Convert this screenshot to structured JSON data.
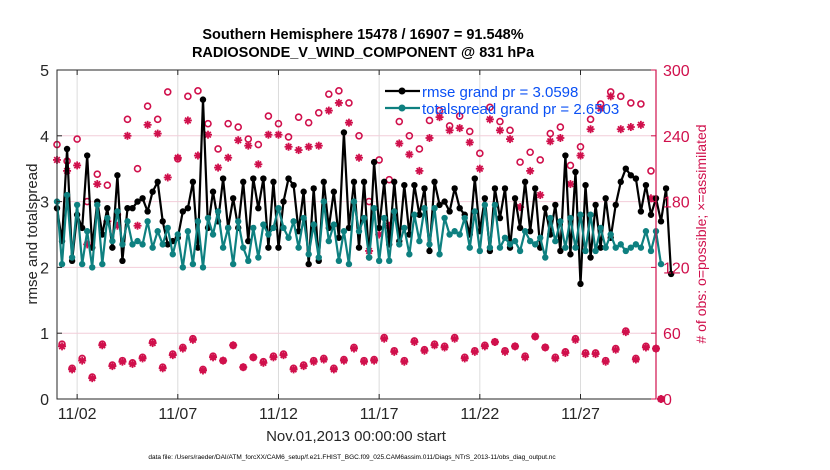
{
  "chart_data": {
    "type": "line",
    "title": [
      "Southern Hemisphere 15478 / 16907 = 91.548%",
      "RADIOSONDE_V_WIND_COMPONENT @ 831 hPa"
    ],
    "xlabel": "Nov.01,2013 00:00:00 start",
    "ylabel": "rmse and totalspread",
    "ylabel_right": "# of obs: o=possible; ×=assimilated",
    "footer": "data file: /Users/raeder/DAI/ATM_forcXX/CAM6_setup/f.e21.FHIST_BGC.f09_025.CAM6assim.011/Diags_NTrS_2013-11/obs_diag_output.nc",
    "time_step_hours": 6,
    "x_start_day": 1,
    "xlim_days": [
      1,
      30.75
    ],
    "ylim": [
      0,
      5
    ],
    "ylim_right": [
      0,
      300
    ],
    "yticks": [
      "0",
      "1",
      "2",
      "3",
      "4",
      "5"
    ],
    "yticks_right": [
      "0",
      "60",
      "120",
      "180",
      "240",
      "300"
    ],
    "xticks": [
      {
        "day": 2,
        "label": "11/02"
      },
      {
        "day": 7,
        "label": "11/07"
      },
      {
        "day": 12,
        "label": "11/12"
      },
      {
        "day": 17,
        "label": "11/17"
      },
      {
        "day": 22,
        "label": "11/22"
      },
      {
        "day": 27,
        "label": "11/27"
      }
    ],
    "grid": true,
    "legend_placement": "top-right",
    "series": [
      {
        "name": "rmse grand pr = 3.0598",
        "color": "#000000",
        "axis": "left",
        "values": [
          2.9,
          2.4,
          3.8,
          2.1,
          2.8,
          2.6,
          3.7,
          2.3,
          3.0,
          2.5,
          2.9,
          2.3,
          3.4,
          2.1,
          2.9,
          2.9,
          3.0,
          3.05,
          2.85,
          3.15,
          3.3,
          2.7,
          2.35,
          2.4,
          2.45,
          2.85,
          2.9,
          3.3,
          2.3,
          4.55,
          2.6,
          3.15,
          2.7,
          3.35,
          2.6,
          3.05,
          2.6,
          3.3,
          2.4,
          3.35,
          2.9,
          3.35,
          2.3,
          3.3,
          2.3,
          3.0,
          3.35,
          3.25,
          2.55,
          3.15,
          2.05,
          3.2,
          2.1,
          3.3,
          2.6,
          3.15,
          2.45,
          4.05,
          2.6,
          3.3,
          2.3,
          3.3,
          2.15,
          3.6,
          2.6,
          3.3,
          2.35,
          3.3,
          2.4,
          3.25,
          2.5,
          3.25,
          2.8,
          3.2,
          2.25,
          3.3,
          2.95,
          3.0,
          2.85,
          3.2,
          2.9,
          2.8,
          2.5,
          3.35,
          2.55,
          3.05,
          2.25,
          3.2,
          2.75,
          3.2,
          2.3,
          3.05,
          2.6,
          3.3,
          2.55,
          3.2,
          2.3,
          2.9,
          2.5,
          2.95,
          2.25,
          3.7,
          2.2,
          3.45,
          1.75,
          3.25,
          2.15,
          2.95,
          2.3,
          3.05,
          2.45,
          2.95,
          3.3,
          3.5,
          3.4,
          3.35,
          2.85,
          3.25,
          2.8,
          3.05,
          2.7,
          3.2,
          1.9
        ]
      },
      {
        "name": "totalspread grand pr = 2.6503",
        "color": "#0e8080",
        "axis": "left",
        "values": [
          3.0,
          2.05,
          3.1,
          2.15,
          2.95,
          2.05,
          2.55,
          2.0,
          2.95,
          2.05,
          2.75,
          2.4,
          2.85,
          2.35,
          2.7,
          2.35,
          2.4,
          2.35,
          2.7,
          2.3,
          2.55,
          2.35,
          2.6,
          2.2,
          2.5,
          2.0,
          2.55,
          2.05,
          2.7,
          2.0,
          2.75,
          2.5,
          2.85,
          2.3,
          2.6,
          2.05,
          2.7,
          2.3,
          2.1,
          2.6,
          2.15,
          2.65,
          2.5,
          2.6,
          2.9,
          2.6,
          2.45,
          2.7,
          2.3,
          2.75,
          2.2,
          2.65,
          2.15,
          3.0,
          2.4,
          2.65,
          2.1,
          2.55,
          2.05,
          3.0,
          2.55,
          2.75,
          2.15,
          2.9,
          2.1,
          2.75,
          2.1,
          2.85,
          2.35,
          2.6,
          2.2,
          2.8,
          2.4,
          2.9,
          2.35,
          2.9,
          2.2,
          2.75,
          2.5,
          2.55,
          2.5,
          2.75,
          2.3,
          2.85,
          2.25,
          2.95,
          2.3,
          2.95,
          2.3,
          2.45,
          2.35,
          2.4,
          2.25,
          2.55,
          2.4,
          2.35,
          2.45,
          2.15,
          2.75,
          2.4,
          2.7,
          2.3,
          2.75,
          2.3,
          2.8,
          2.25,
          2.8,
          2.25,
          2.6,
          2.3,
          2.5,
          2.3,
          2.35,
          2.25,
          2.3,
          2.35,
          2.3,
          2.55,
          2.25,
          2.55,
          2.05
        ]
      },
      {
        "name": "possible obs (o)",
        "color": "#d0104c",
        "axis": "right",
        "values": [
          232,
          50,
          217,
          28,
          237,
          37,
          180,
          20,
          205,
          50,
          195,
          31,
          168,
          35,
          255,
          33,
          210,
          38,
          267,
          52,
          255,
          29,
          280,
          41,
          219,
          47,
          276,
          55,
          281,
          27,
          251,
          39,
          228,
          35,
          251,
          49,
          248,
          29,
          237,
          38,
          232,
          34,
          258,
          39,
          251,
          41,
          239,
          28,
          257,
          31,
          252,
          35,
          261,
          37,
          278,
          28,
          281,
          36,
          270,
          47,
          240,
          35,
          180,
          36,
          218,
          56,
          200,
          44,
          253,
          35,
          240,
          53,
          228,
          45,
          254,
          50,
          263,
          48,
          249,
          56,
          258,
          38,
          244,
          44,
          224,
          49,
          266,
          52,
          253,
          44,
          245,
          48,
          216,
          39,
          225,
          57,
          218,
          47,
          242,
          38,
          248,
          43,
          213,
          55,
          230,
          42,
          255,
          42,
          269,
          35,
          280,
          46,
          276,
          62,
          270,
          37,
          269,
          48,
          208,
          46,
          0
        ]
      },
      {
        "name": "assimilated obs (×)",
        "color": "#d0104c",
        "axis": "right",
        "values": [
          218,
          48,
          208,
          27,
          213,
          35,
          141,
          19,
          196,
          49,
          162,
          30,
          158,
          34,
          240,
          32,
          158,
          37,
          250,
          51,
          242,
          28,
          202,
          40,
          220,
          46,
          254,
          54,
          222,
          26,
          241,
          38,
          211,
          35,
          220,
          49,
          236,
          29,
          231,
          38,
          214,
          33,
          241,
          38,
          241,
          40,
          230,
          27,
          227,
          30,
          230,
          34,
          231,
          36,
          263,
          27,
          270,
          35,
          252,
          46,
          220,
          34,
          135,
          35,
          150,
          55,
          158,
          43,
          233,
          34,
          223,
          52,
          208,
          44,
          238,
          49,
          257,
          47,
          245,
          55,
          247,
          37,
          234,
          43,
          210,
          48,
          255,
          52,
          245,
          43,
          237,
          48,
          175,
          38,
          208,
          57,
          186,
          47,
          235,
          37,
          238,
          42,
          196,
          54,
          222,
          41,
          246,
          41,
          265,
          34,
          276,
          45,
          246,
          61,
          248,
          36,
          250,
          47,
          183,
          46,
          0
        ]
      }
    ]
  }
}
